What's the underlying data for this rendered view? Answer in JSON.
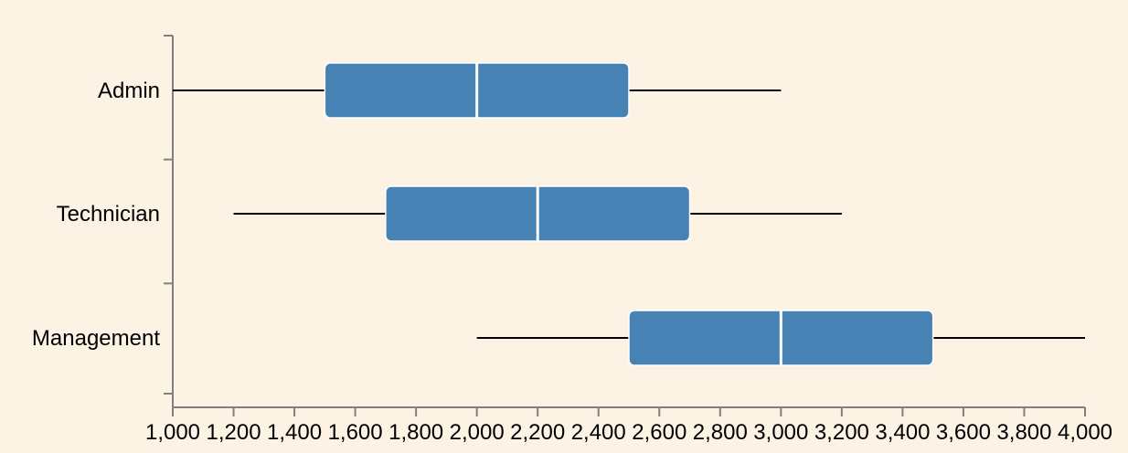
{
  "chart_data": {
    "type": "box",
    "orientation": "horizontal",
    "title": "",
    "xlabel": "",
    "ylabel": "",
    "xlim": [
      1000,
      4000
    ],
    "x_ticks": [
      1000,
      1200,
      1400,
      1600,
      1800,
      2000,
      2200,
      2400,
      2600,
      2800,
      3000,
      3200,
      3400,
      3600,
      3800,
      4000
    ],
    "x_tick_labels": [
      "1,000",
      "1,200",
      "1,400",
      "1,600",
      "1,800",
      "2,000",
      "2,200",
      "2,400",
      "2,600",
      "2,800",
      "3,000",
      "3,200",
      "3,400",
      "3,600",
      "3,800",
      "4,000"
    ],
    "categories": [
      "Admin",
      "Technician",
      "Management"
    ],
    "boxes": [
      {
        "category": "Admin",
        "min": 1000,
        "q1": 1500,
        "median": 2000,
        "q3": 2500,
        "max": 3000
      },
      {
        "category": "Technician",
        "min": 1200,
        "q1": 1700,
        "median": 2200,
        "q3": 2700,
        "max": 3200
      },
      {
        "category": "Management",
        "min": 2000,
        "q1": 2500,
        "median": 3000,
        "q3": 3500,
        "max": 4000
      }
    ],
    "colors": {
      "background": "#fdf3e5",
      "box": "#4682b4",
      "median": "#ffffff",
      "whisker": "#000000",
      "axis": "#808080"
    },
    "grid": false,
    "legend": "none"
  }
}
